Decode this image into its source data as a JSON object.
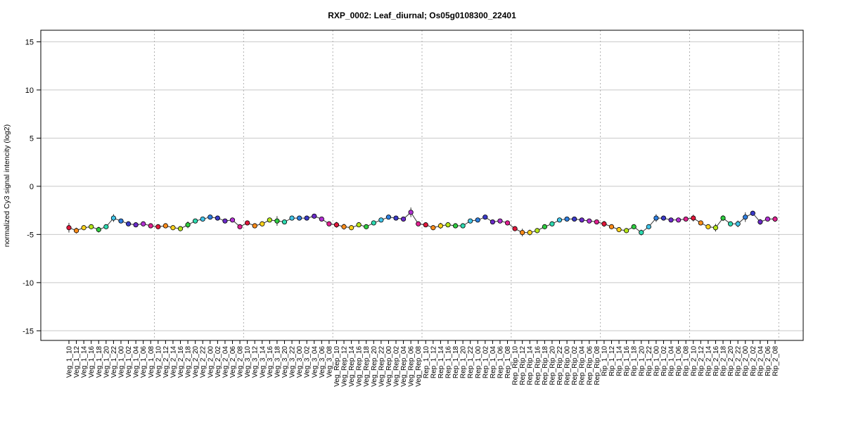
{
  "chart_data": {
    "type": "line",
    "title": "RXP_0002: Leaf_diurnal; Os05g0108300_22401",
    "ylabel": "normalized Cy3 signal intencity (log2)",
    "xlabel": "",
    "ylim": [
      -16,
      16.2
    ],
    "yticks": [
      -15,
      -10,
      -5,
      0,
      5,
      10,
      15
    ],
    "grid": true,
    "group_boundaries_after_index": [
      11,
      23,
      35,
      47,
      59,
      71,
      83,
      95
    ],
    "categories": [
      "Veg_1_10",
      "Veg_1_12",
      "Veg_1_14",
      "Veg_1_16",
      "Veg_1_18",
      "Veg_1_20",
      "Veg_1_22",
      "Veg_1_00",
      "Veg_1_02",
      "Veg_1_04",
      "Veg_1_06",
      "Veg_1_08",
      "Veg_2_10",
      "Veg_2_12",
      "Veg_2_14",
      "Veg_2_16",
      "Veg_2_18",
      "Veg_2_20",
      "Veg_2_22",
      "Veg_2_00",
      "Veg_2_02",
      "Veg_2_04",
      "Veg_2_06",
      "Veg_2_08",
      "Veg_3_10",
      "Veg_3_12",
      "Veg_3_14",
      "Veg_3_16",
      "Veg_3_18",
      "Veg_3_20",
      "Veg_3_22",
      "Veg_3_00",
      "Veg_3_02",
      "Veg_3_04",
      "Veg_3_06",
      "Veg_3_08",
      "Veg_Rep_10",
      "Veg_Rep_12",
      "Veg_Rep_14",
      "Veg_Rep_16",
      "Veg_Rep_18",
      "Veg_Rep_20",
      "Veg_Rep_22",
      "Veg_Rep_00",
      "Veg_Rep_02",
      "Veg_Rep_04",
      "Veg_Rep_06",
      "Veg_Rep_08",
      "Rep_1_10",
      "Rep_1_12",
      "Rep_1_14",
      "Rep_1_16",
      "Rep_1_18",
      "Rep_1_20",
      "Rep_1_22",
      "Rep_1_00",
      "Rep_1_02",
      "Rep_1_04",
      "Rep_1_06",
      "Rep_1_08",
      "Rep_Rip_10",
      "Rep_Rip_12",
      "Rep_Rip_14",
      "Rep_Rip_16",
      "Rep_Rip_18",
      "Rep_Rip_20",
      "Rep_Rip_22",
      "Rep_Rip_00",
      "Rep_Rip_02",
      "Rep_Rip_04",
      "Rep_Rip_06",
      "Rep_Rip_08",
      "Rip_1_10",
      "Rip_1_12",
      "Rip_1_14",
      "Rip_1_16",
      "Rip_1_18",
      "Rip_1_20",
      "Rip_1_22",
      "Rip_1_00",
      "Rip_1_02",
      "Rip_1_04",
      "Rip_1_06",
      "Rip_1_08",
      "Rip_2_10",
      "Rip_2_12",
      "Rip_2_14",
      "Rip_2_16",
      "Rip_2_18",
      "Rip_2_20",
      "Rip_2_22",
      "Rip_2_00",
      "Rip_2_02",
      "Rip_2_04",
      "Rip_2_06",
      "Rip_2_08"
    ],
    "values": [
      -4.3,
      -4.6,
      -4.3,
      -4.2,
      -4.5,
      -4.2,
      -3.3,
      -3.6,
      -3.9,
      -4.0,
      -3.9,
      -4.1,
      -4.2,
      -4.1,
      -4.3,
      -4.4,
      -4.0,
      -3.6,
      -3.4,
      -3.2,
      -3.3,
      -3.6,
      -3.5,
      -4.2,
      -3.8,
      -4.1,
      -3.9,
      -3.5,
      -3.6,
      -3.7,
      -3.3,
      -3.3,
      -3.3,
      -3.1,
      -3.4,
      -3.9,
      -4.0,
      -4.2,
      -4.3,
      -4.0,
      -4.2,
      -3.8,
      -3.5,
      -3.2,
      -3.3,
      -3.4,
      -2.7,
      -3.9,
      -4.0,
      -4.3,
      -4.1,
      -4.0,
      -4.1,
      -4.1,
      -3.6,
      -3.5,
      -3.2,
      -3.7,
      -3.6,
      -3.8,
      -4.4,
      -4.8,
      -4.8,
      -4.6,
      -4.2,
      -3.9,
      -3.5,
      -3.4,
      -3.4,
      -3.5,
      -3.6,
      -3.7,
      -3.9,
      -4.2,
      -4.5,
      -4.6,
      -4.2,
      -4.8,
      -4.2,
      -3.3,
      -3.3,
      -3.5,
      -3.5,
      -3.4,
      -3.3,
      -3.8,
      -4.2,
      -4.3,
      -3.3,
      -3.9,
      -3.9,
      -3.2,
      -2.8,
      -3.7,
      -3.4,
      -3.4
    ],
    "errors": [
      0.5,
      0.3,
      0.15,
      0.25,
      0.3,
      0.15,
      0.4,
      0.15,
      0.15,
      0.1,
      0.1,
      0.15,
      0.2,
      0.1,
      0.1,
      0.15,
      0.35,
      0.15,
      0.1,
      0.2,
      0.25,
      0.1,
      0.1,
      0.15,
      0.15,
      0.15,
      0.1,
      0.15,
      0.5,
      0.15,
      0.15,
      0.1,
      0.1,
      0.1,
      0.15,
      0.15,
      0.3,
      0.3,
      0.2,
      0.15,
      0.15,
      0.1,
      0.1,
      0.15,
      0.1,
      0.1,
      0.5,
      0.15,
      0.15,
      0.15,
      0.3,
      0.1,
      0.1,
      0.1,
      0.15,
      0.1,
      0.15,
      0.1,
      0.15,
      0.1,
      0.2,
      0.4,
      0.3,
      0.2,
      0.15,
      0.1,
      0.1,
      0.1,
      0.1,
      0.1,
      0.1,
      0.1,
      0.3,
      0.15,
      0.1,
      0.1,
      0.15,
      0.3,
      0.2,
      0.4,
      0.15,
      0.1,
      0.1,
      0.1,
      0.35,
      0.1,
      0.2,
      0.4,
      0.3,
      0.15,
      0.35,
      0.5,
      0.25,
      0.3,
      0.15,
      0.3
    ],
    "point_colors": [
      "#e0173a",
      "#ff8c1a",
      "#ffd21a",
      "#b5e61a",
      "#2ecc40",
      "#2edab0",
      "#40c4e8",
      "#2f7fe0",
      "#3a3ac8",
      "#6a2bc8",
      "#b030d0",
      "#e02090",
      "#e0173a",
      "#ff8c1a",
      "#ffd21a",
      "#b5e61a",
      "#2ecc40",
      "#2edab0",
      "#40c4e8",
      "#2f7fe0",
      "#3a3ac8",
      "#6a2bc8",
      "#b030d0",
      "#e02090",
      "#e0173a",
      "#ff8c1a",
      "#ffd21a",
      "#b5e61a",
      "#2ecc40",
      "#2edab0",
      "#40c4e8",
      "#2f7fe0",
      "#3a3ac8",
      "#6a2bc8",
      "#b030d0",
      "#e02090",
      "#e0173a",
      "#ff8c1a",
      "#ffd21a",
      "#b5e61a",
      "#2ecc40",
      "#2edab0",
      "#40c4e8",
      "#2f7fe0",
      "#3a3ac8",
      "#6a2bc8",
      "#b030d0",
      "#e02090",
      "#e0173a",
      "#ff8c1a",
      "#ffd21a",
      "#b5e61a",
      "#2ecc40",
      "#2edab0",
      "#40c4e8",
      "#2f7fe0",
      "#3a3ac8",
      "#6a2bc8",
      "#b030d0",
      "#e02090",
      "#e0173a",
      "#ff8c1a",
      "#ffd21a",
      "#b5e61a",
      "#2ecc40",
      "#2edab0",
      "#40c4e8",
      "#2f7fe0",
      "#3a3ac8",
      "#6a2bc8",
      "#b030d0",
      "#e02090",
      "#e0173a",
      "#ff8c1a",
      "#ffd21a",
      "#b5e61a",
      "#2ecc40",
      "#2edab0",
      "#40c4e8",
      "#2f7fe0",
      "#3a3ac8",
      "#6a2bc8",
      "#b030d0",
      "#e02090",
      "#e0173a",
      "#ff8c1a",
      "#ffd21a",
      "#b5e61a",
      "#2ecc40",
      "#2edab0",
      "#40c4e8",
      "#2f7fe0",
      "#3a3ac8",
      "#6a2bc8",
      "#b030d0",
      "#e02090"
    ]
  }
}
